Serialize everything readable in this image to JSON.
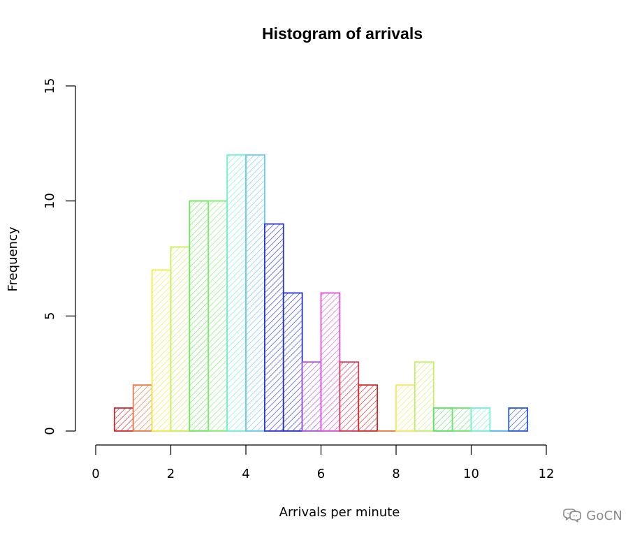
{
  "chart_data": {
    "type": "bar",
    "title": "Histogram of arrivals",
    "xlabel": "Arrivals per minute",
    "ylabel": "Frequency",
    "bins": [
      {
        "start": 0.5,
        "end": 1.0,
        "value": 1
      },
      {
        "start": 1.0,
        "end": 1.5,
        "value": 2
      },
      {
        "start": 1.5,
        "end": 2.0,
        "value": 7
      },
      {
        "start": 2.0,
        "end": 2.5,
        "value": 8
      },
      {
        "start": 2.5,
        "end": 3.0,
        "value": 10
      },
      {
        "start": 3.0,
        "end": 3.5,
        "value": 10
      },
      {
        "start": 3.5,
        "end": 4.0,
        "value": 12
      },
      {
        "start": 4.0,
        "end": 4.5,
        "value": 12
      },
      {
        "start": 4.5,
        "end": 5.0,
        "value": 9
      },
      {
        "start": 5.0,
        "end": 5.5,
        "value": 6
      },
      {
        "start": 5.5,
        "end": 6.0,
        "value": 3
      },
      {
        "start": 6.0,
        "end": 6.5,
        "value": 6
      },
      {
        "start": 6.5,
        "end": 7.0,
        "value": 3
      },
      {
        "start": 7.0,
        "end": 7.5,
        "value": 2
      },
      {
        "start": 7.5,
        "end": 8.0,
        "value": 0
      },
      {
        "start": 8.0,
        "end": 8.5,
        "value": 2
      },
      {
        "start": 8.5,
        "end": 9.0,
        "value": 3
      },
      {
        "start": 9.0,
        "end": 9.5,
        "value": 1
      },
      {
        "start": 9.5,
        "end": 10.0,
        "value": 1
      },
      {
        "start": 10.0,
        "end": 10.5,
        "value": 1
      },
      {
        "start": 10.5,
        "end": 11.0,
        "value": 0
      },
      {
        "start": 11.0,
        "end": 11.5,
        "value": 1
      }
    ],
    "colors": [
      "#d9262d",
      "#ea7a4a",
      "#f2ea45",
      "#c8ef58",
      "#69ea55",
      "#7df06d",
      "#6ff1d2",
      "#69c8f2",
      "#2b36d8",
      "#2430d0",
      "#a552e6",
      "#db4edb",
      "#d73759",
      "#d72b2b",
      "#e9742c",
      "#f3ea63",
      "#c7f06a",
      "#58e361",
      "#6be76c",
      "#6ff1d2",
      "#4ab3f2",
      "#2c58df"
    ],
    "x_ticks": [
      0,
      2,
      4,
      6,
      8,
      10,
      12
    ],
    "y_ticks": [
      0,
      5,
      10,
      15
    ],
    "xlim": [
      0,
      12
    ],
    "ylim": [
      0,
      15
    ],
    "grid": false
  },
  "watermark": {
    "text": "GoCN",
    "icon": "chat-bubbles-icon"
  }
}
